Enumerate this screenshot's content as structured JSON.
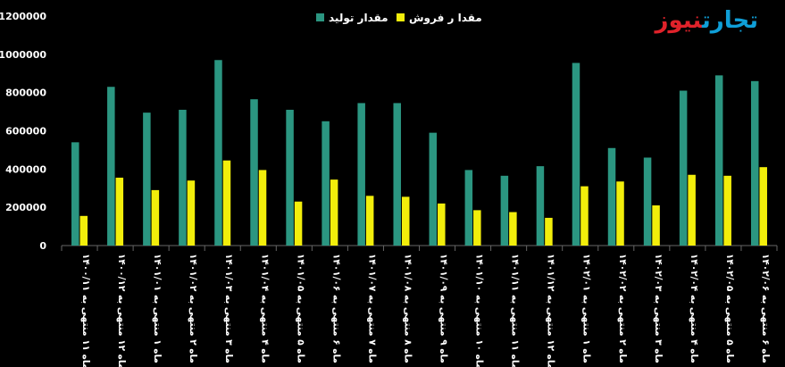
{
  "logo": {
    "part_a": "تجارت",
    "part_b": "نیوز"
  },
  "colors": {
    "production": "#2b9681",
    "sales": "#f2ee0b",
    "background": "#000000",
    "text": "#ffffff",
    "axis": "#666666"
  },
  "chart_data": {
    "type": "bar",
    "title": "",
    "xlabel": "",
    "ylabel": "",
    "ylim": [
      0,
      1200000
    ],
    "yticks": [
      0,
      200000,
      400000,
      600000,
      800000,
      1000000,
      1200000
    ],
    "ytick_labels": [
      "0",
      "200000",
      "400000",
      "600000",
      "800000",
      "1000000",
      "1200000"
    ],
    "grid": false,
    "legend_position": "top",
    "categories": [
      "ماه ۱۱ منتهی به ۱۴۰۰/۱۱",
      "ماه ۱۲ منتهی به ۱۴۰۰/۱۲",
      "ماه ۱ منتهی به ۱۴۰۱/۰۱",
      "ماه ۲ منتهی به ۱۴۰۱/۰۲",
      "ماه ۳ منتهی به ۱۴۰۱/۰۳",
      "ماه ۴ منتهی به ۱۴۰۱/۰۴",
      "ماه ۵ منتهی به ۱۴۰۱/۰۵",
      "ماه ۶ منتهی به ۱۴۰۱/۰۶",
      "ماه ۷ منتهی به ۱۴۰۱/۰۷",
      "ماه ۸ منتهی به ۱۴۰۱/۰۸",
      "ماه ۹ منتهی به ۱۴۰۱/۰۹",
      "ماه ۱۰ منتهی به ۱۴۰۱/۱۰",
      "ماه ۱۱ منتهی به ۱۴۰۱/۱۱",
      "ماه ۱۲ منتهی به ۱۴۰۱/۱۲",
      "ماه ۱ منتهی به ۱۴۰۲/۰۱",
      "ماه ۲ منتهی به ۱۴۰۲/۰۲",
      "ماه ۳ منتهی به ۱۴۰۲/۰۳",
      "ماه ۴ منتهی به ۱۴۰۲/۰۴",
      "ماه ۵ منتهی به ۱۴۰۲/۰۵",
      "ماه ۶ منتهی به ۱۴۰۲/۰۶"
    ],
    "series": [
      {
        "name": "مقدار تولید",
        "color": "#2b9681",
        "values": [
          540000,
          830000,
          695000,
          710000,
          970000,
          765000,
          710000,
          650000,
          745000,
          745000,
          590000,
          395000,
          365000,
          415000,
          955000,
          510000,
          460000,
          810000,
          890000,
          860000
        ]
      },
      {
        "name": "مقدا ر فروش",
        "color": "#f2ee0b",
        "values": [
          155000,
          355000,
          290000,
          340000,
          445000,
          395000,
          230000,
          345000,
          260000,
          255000,
          220000,
          185000,
          175000,
          145000,
          310000,
          335000,
          210000,
          370000,
          365000,
          410000
        ]
      }
    ]
  }
}
